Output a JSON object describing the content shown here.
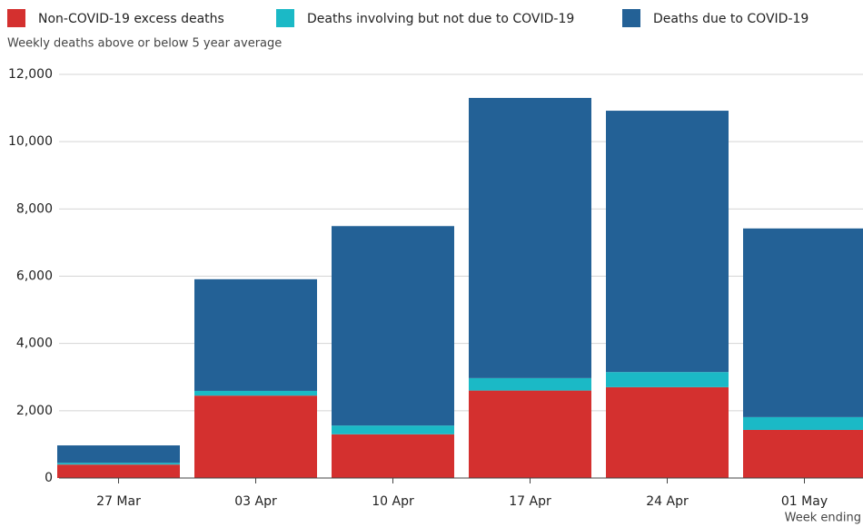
{
  "chart_data": {
    "type": "stacked_bar",
    "subtitle": "Weekly deaths above or below 5 year average",
    "x_label": "Week ending",
    "categories": [
      "27 Mar",
      "03 Apr",
      "10 Apr",
      "17 Apr",
      "24 Apr",
      "01 May"
    ],
    "series": [
      {
        "name": "Non-COVID-19 excess deaths",
        "color": "#d4302f",
        "values": [
          400,
          2450,
          1300,
          2600,
          2700,
          1430
        ]
      },
      {
        "name": "Deaths involving but not due to COVID-19",
        "color": "#1bb9c6",
        "values": [
          50,
          140,
          260,
          370,
          450,
          380
        ]
      },
      {
        "name": "Deaths due to COVID-19",
        "color": "#236196",
        "values": [
          520,
          3320,
          5930,
          8330,
          7770,
          5610
        ]
      }
    ],
    "ylim": [
      0,
      12000
    ],
    "yticks": [
      0,
      {
        "value": 2000,
        "label": "2,000"
      },
      {
        "value": 4000,
        "label": "4,000"
      },
      {
        "value": 6000,
        "label": "6,000"
      },
      {
        "value": 8000,
        "label": "8,000"
      },
      {
        "value": 10000,
        "label": "10,000"
      },
      {
        "value": 12000,
        "label": "12,000"
      }
    ],
    "grid": true
  }
}
